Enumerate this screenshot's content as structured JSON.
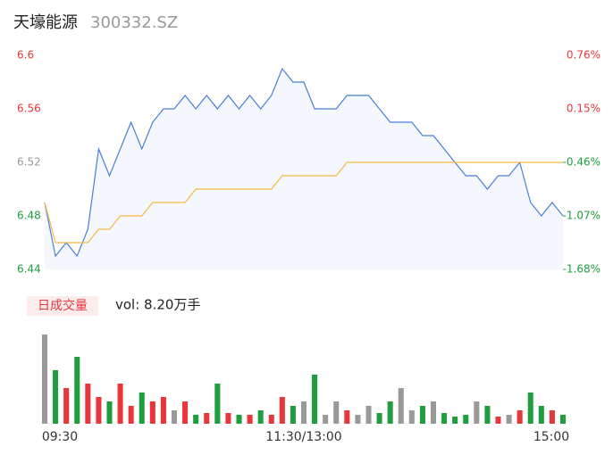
{
  "chart_data": {
    "type": "line",
    "title": "天壕能源",
    "subtitle": "300332.SZ",
    "volume_label": "日成交量",
    "volume_text": "vol: 8.20万手",
    "categories": [
      "09:30",
      null,
      null,
      null,
      null,
      null,
      null,
      null,
      null,
      null,
      null,
      null,
      null,
      null,
      null,
      null,
      null,
      null,
      null,
      null,
      null,
      null,
      null,
      null,
      "11:30/13:00",
      null,
      null,
      null,
      null,
      null,
      null,
      null,
      null,
      null,
      null,
      null,
      null,
      null,
      null,
      null,
      null,
      null,
      null,
      null,
      null,
      null,
      null,
      null,
      "15:00"
    ],
    "series": [
      {
        "name": "price",
        "color": "#4a7fd8",
        "values": [
          6.49,
          6.45,
          6.46,
          6.45,
          6.47,
          6.53,
          6.51,
          6.53,
          6.55,
          6.53,
          6.55,
          6.56,
          6.56,
          6.57,
          6.56,
          6.57,
          6.56,
          6.57,
          6.56,
          6.57,
          6.56,
          6.57,
          6.59,
          6.58,
          6.58,
          6.56,
          6.56,
          6.56,
          6.57,
          6.57,
          6.57,
          6.56,
          6.55,
          6.55,
          6.55,
          6.54,
          6.54,
          6.53,
          6.52,
          6.51,
          6.51,
          6.5,
          6.51,
          6.51,
          6.52,
          6.49,
          6.48,
          6.49,
          6.48
        ]
      },
      {
        "name": "average",
        "color": "#f5b942",
        "values": [
          6.49,
          6.46,
          6.46,
          6.46,
          6.46,
          6.47,
          6.47,
          6.48,
          6.48,
          6.48,
          6.49,
          6.49,
          6.49,
          6.49,
          6.5,
          6.5,
          6.5,
          6.5,
          6.5,
          6.5,
          6.5,
          6.5,
          6.51,
          6.51,
          6.51,
          6.51,
          6.51,
          6.51,
          6.52,
          6.52,
          6.52,
          6.52,
          6.52,
          6.52,
          6.52,
          6.52,
          6.52,
          6.52,
          6.52,
          6.52,
          6.52,
          6.52,
          6.52,
          6.52,
          6.52,
          6.52,
          6.52,
          6.52,
          6.52
        ]
      }
    ],
    "volume": [
      100,
      60,
      40,
      75,
      45,
      30,
      25,
      45,
      20,
      35,
      25,
      30,
      15,
      25,
      10,
      12,
      45,
      12,
      10,
      10,
      15,
      10,
      30,
      20,
      25,
      55,
      10,
      25,
      15,
      10,
      20,
      12,
      25,
      40,
      15,
      20,
      25,
      12,
      8,
      10,
      25,
      20,
      8,
      10,
      15,
      35,
      20,
      15,
      10
    ],
    "ylim": [
      6.44,
      6.6
    ],
    "yticks": [
      6.6,
      6.56,
      6.52,
      6.48,
      6.44
    ],
    "y2lim": [
      -1.68,
      0.76
    ],
    "y2ticks": [
      {
        "value": 0.76,
        "label": "0.76%"
      },
      {
        "value": 0.15,
        "label": "0.15%"
      },
      {
        "value": -0.46,
        "label": "-0.46%"
      },
      {
        "value": -1.07,
        "label": "-1.07%"
      },
      {
        "value": -1.68,
        "label": "-1.68%"
      }
    ],
    "up_color": "#e8363b",
    "down_color": "#1f9e3d",
    "flat_color": "#999999",
    "area_color": "#f4f7fd"
  }
}
